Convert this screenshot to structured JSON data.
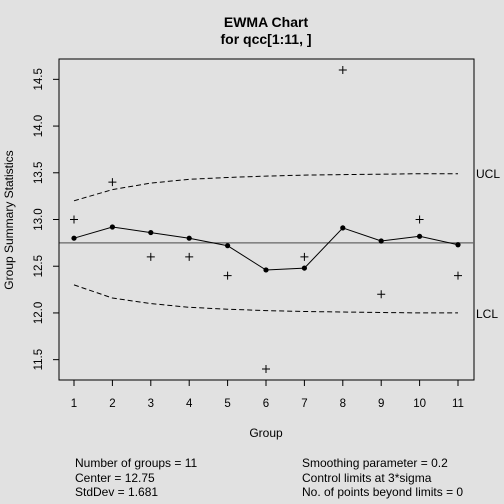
{
  "chart_data": {
    "type": "line",
    "title": "EWMA Chart",
    "subtitle": "for qcc[1:11, ]",
    "xlabel": "Group",
    "ylabel": "Group Summary Statistics",
    "xlim": [
      1,
      11
    ],
    "ylim": [
      11.4,
      14.6
    ],
    "x_ticks": [
      1,
      2,
      3,
      4,
      5,
      6,
      7,
      8,
      9,
      10,
      11
    ],
    "y_ticks": [
      11.5,
      12.0,
      12.5,
      13.0,
      13.5,
      14.0,
      14.5
    ],
    "y_tick_labels": [
      "11.5",
      "12.0",
      "12.5",
      "13.0",
      "13.5",
      "14.0",
      "14.5"
    ],
    "x": [
      1,
      2,
      3,
      4,
      5,
      6,
      7,
      8,
      9,
      10,
      11
    ],
    "group_statistics": [
      13.0,
      13.4,
      12.6,
      12.6,
      12.4,
      11.4,
      12.6,
      14.6,
      12.2,
      13.0,
      12.4
    ],
    "ewma": [
      12.8,
      12.92,
      12.86,
      12.8,
      12.72,
      12.46,
      12.48,
      12.91,
      12.77,
      12.82,
      12.73
    ],
    "center": 12.75,
    "ucl": [
      13.2,
      13.32,
      13.39,
      13.43,
      13.45,
      13.465,
      13.475,
      13.48,
      13.485,
      13.49,
      13.49
    ],
    "lcl": [
      12.3,
      12.16,
      12.1,
      12.06,
      12.04,
      12.025,
      12.015,
      12.01,
      12.005,
      12.0,
      12.0
    ],
    "ucl_label": "UCL",
    "lcl_label": "LCL",
    "grid": false
  },
  "summary": {
    "left": [
      "Number of groups = 11",
      "Center = 12.75",
      "StdDev = 1.681"
    ],
    "right": [
      "Smoothing parameter =  0.2",
      "Control limits at 3*sigma",
      "No. of points beyond limits = 0"
    ]
  }
}
